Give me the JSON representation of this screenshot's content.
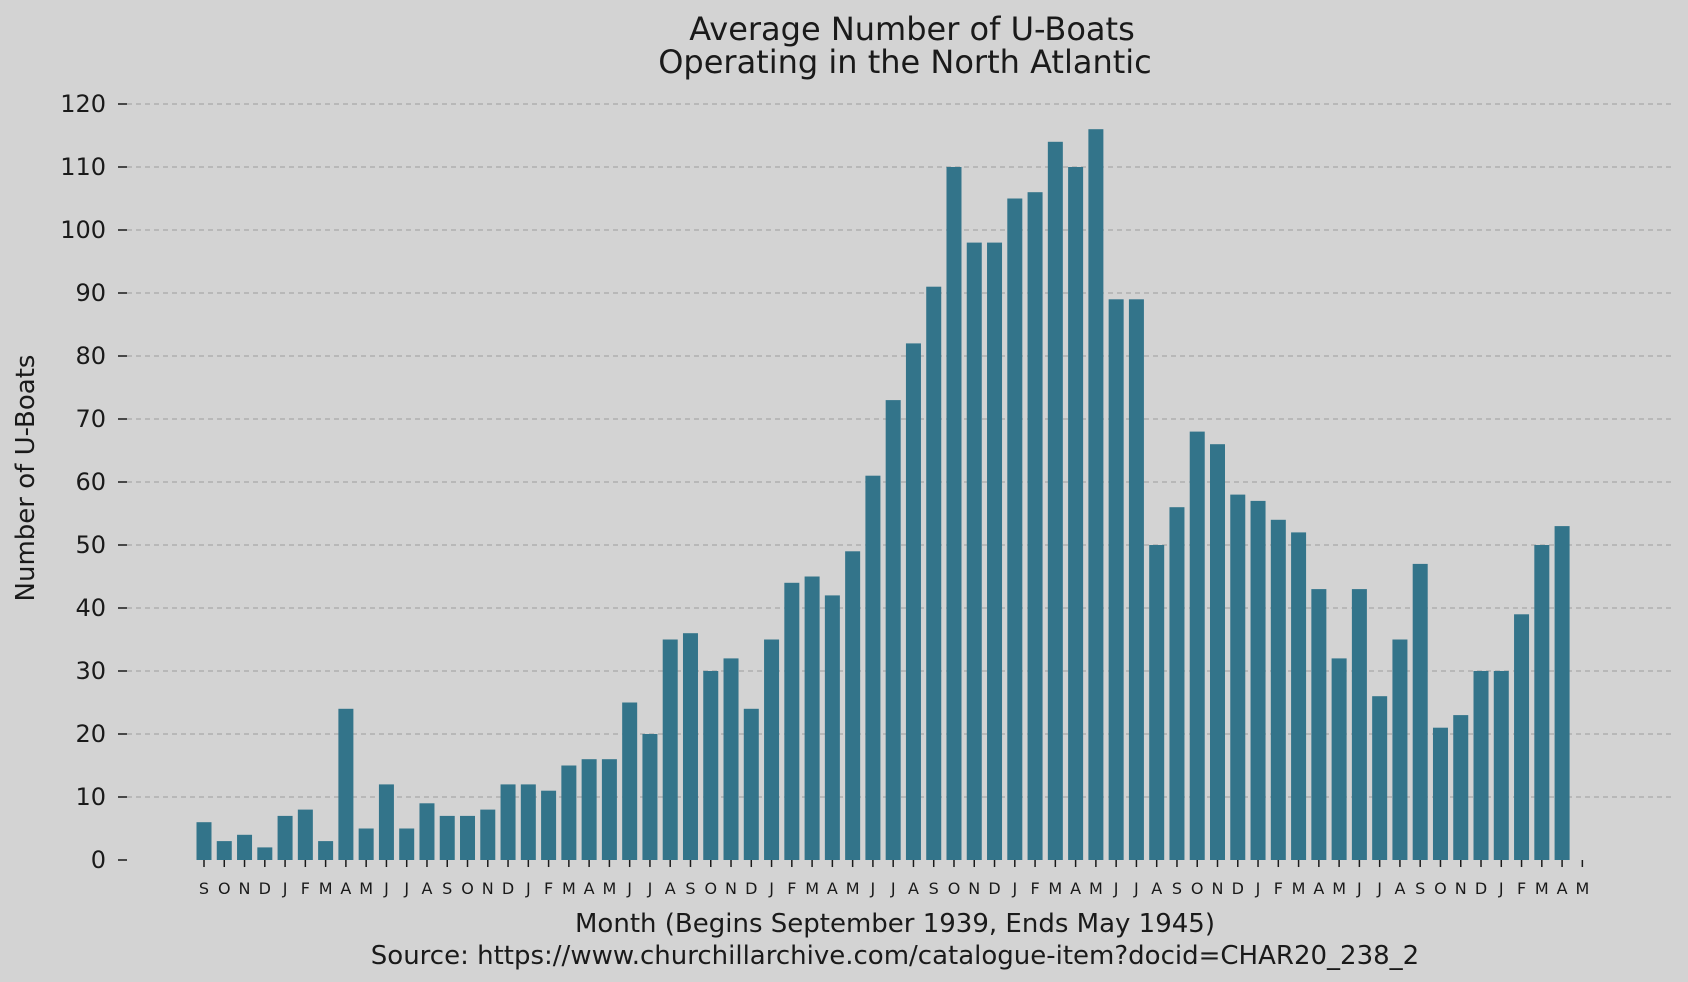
{
  "colors": {
    "background": "#d3d3d3",
    "bar": "#33748a",
    "grid": "#a9a9a9",
    "text": "#1a1a1a",
    "tick": "#1a1a1a"
  },
  "chart_data": {
    "type": "bar",
    "title_lines": [
      "Average Number of U-Boats",
      "Operating in the North Atlantic"
    ],
    "xlabel": "Month (Begins September 1939, Ends May 1945)",
    "source": "Source: https://www.churchillarchive.com/catalogue-item?docid=CHAR20_238_2",
    "ylabel": "Number of U-Boats",
    "ylim": [
      0,
      120
    ],
    "yticks": [
      0,
      10,
      20,
      30,
      40,
      50,
      60,
      70,
      80,
      90,
      100,
      110,
      120
    ],
    "grid": "horizontal dashed",
    "categories": [
      "S",
      "O",
      "N",
      "D",
      "J",
      "F",
      "M",
      "A",
      "M",
      "J",
      "J",
      "A",
      "S",
      "O",
      "N",
      "D",
      "J",
      "F",
      "M",
      "A",
      "M",
      "J",
      "J",
      "A",
      "S",
      "O",
      "N",
      "D",
      "J",
      "F",
      "M",
      "A",
      "M",
      "J",
      "J",
      "A",
      "S",
      "O",
      "N",
      "D",
      "J",
      "F",
      "M",
      "A",
      "M",
      "J",
      "J",
      "A",
      "S",
      "O",
      "N",
      "D",
      "J",
      "F",
      "M",
      "A",
      "M",
      "J",
      "J",
      "A",
      "S",
      "O",
      "N",
      "D",
      "J",
      "F",
      "M",
      "A",
      "M"
    ],
    "values": [
      6,
      3,
      4,
      2,
      7,
      8,
      3,
      24,
      5,
      12,
      5,
      9,
      7,
      7,
      8,
      12,
      12,
      11,
      15,
      16,
      16,
      25,
      20,
      35,
      36,
      30,
      32,
      24,
      35,
      44,
      45,
      42,
      49,
      61,
      73,
      82,
      91,
      110,
      98,
      98,
      105,
      106,
      114,
      110,
      116,
      89,
      89,
      50,
      56,
      68,
      66,
      58,
      57,
      54,
      52,
      43,
      32,
      43,
      26,
      35,
      47,
      21,
      23,
      30,
      30,
      39,
      50,
      53,
      null
    ]
  }
}
